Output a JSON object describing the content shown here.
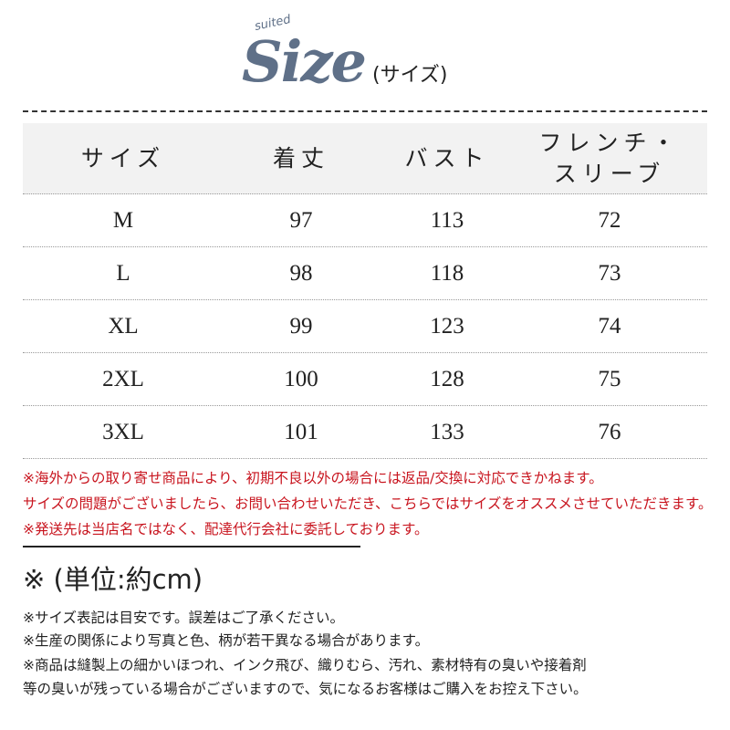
{
  "logo": {
    "small": "suited",
    "big": "Size",
    "paren": "(サイズ)"
  },
  "table": {
    "headers": [
      "サイズ",
      "着丈",
      "バスト",
      "フレンチ・\nスリーブ"
    ],
    "header_line1": "フレンチ・",
    "header_line2": "スリーブ",
    "rows": [
      [
        "M",
        "97",
        "113",
        "72"
      ],
      [
        "L",
        "98",
        "118",
        "73"
      ],
      [
        "XL",
        "99",
        "123",
        "74"
      ],
      [
        "2XL",
        "100",
        "128",
        "75"
      ],
      [
        "3XL",
        "101",
        "133",
        "76"
      ]
    ]
  },
  "red_notes": [
    "※海外からの取り寄せ商品により、初期不良以外の場合には返品/交換に対応できかねます。",
    "サイズの問題がございましたら、お問い合わせいただき、こちらではサイズをオススメさせていただきます。",
    "※発送先は当店名ではなく、配達代行会社に委託しております。"
  ],
  "unit": "※ (単位:約cm)",
  "notes": [
    "※サイズ表記は目安です。誤差はご了承ください。",
    "※生産の関係により写真と色、柄が若干異なる場合があります。",
    "※商品は縫製上の細かいほつれ、インク飛び、織りむら、汚れ、素材特有の臭いや接着剤",
    "等の臭いが残っている場合がございますので、気になるお客様はご購入をお控え下さい。"
  ],
  "colors": {
    "logo": "#5f7088",
    "red": "#c8141e",
    "header_bg": "#f2f2f2"
  }
}
